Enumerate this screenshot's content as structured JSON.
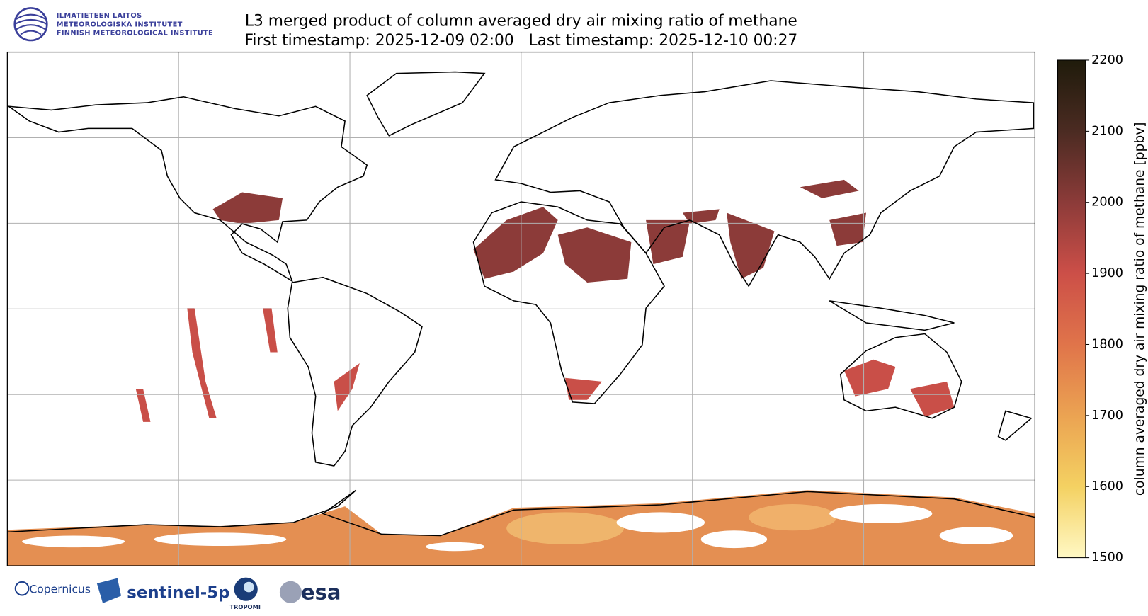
{
  "logo": {
    "lines": [
      "ILMATIETEEN LAITOS",
      "METEOROLOGISKA INSTITUTET",
      "FINNISH METEOROLOGICAL INSTITUTE"
    ]
  },
  "title": {
    "line1": "L3 merged product of column averaged dry air mixing ratio of methane",
    "line2": "First timestamp: 2025-12-09 02:00   Last timestamp: 2025-12-10 00:27"
  },
  "map": {
    "lonlim": [
      -180,
      180
    ],
    "latlim": [
      -90,
      90
    ],
    "lon_lines": [
      -120,
      -60,
      0,
      60,
      120
    ],
    "lat_lines": [
      60,
      30,
      0,
      -30,
      -60
    ]
  },
  "colorbar": {
    "label": "column averaged dry air mixing ratio of methane [ppbv]",
    "lim": [
      1500,
      2200
    ],
    "ticks": [
      1500,
      1600,
      1700,
      1800,
      1900,
      2000,
      2100,
      2200
    ],
    "colormap": [
      {
        "value": 1500,
        "color": "#fff8c4"
      },
      {
        "value": 1600,
        "color": "#f4d162"
      },
      {
        "value": 1700,
        "color": "#eba352"
      },
      {
        "value": 1800,
        "color": "#e0744a"
      },
      {
        "value": 1900,
        "color": "#cc4f48"
      },
      {
        "value": 2000,
        "color": "#8c3b39"
      },
      {
        "value": 2100,
        "color": "#4b2b22"
      },
      {
        "value": 2200,
        "color": "#1f1b0b"
      }
    ]
  },
  "footer_logos": [
    "Copernicus",
    "sentinel-5p",
    "TROPOMI",
    "esa"
  ]
}
